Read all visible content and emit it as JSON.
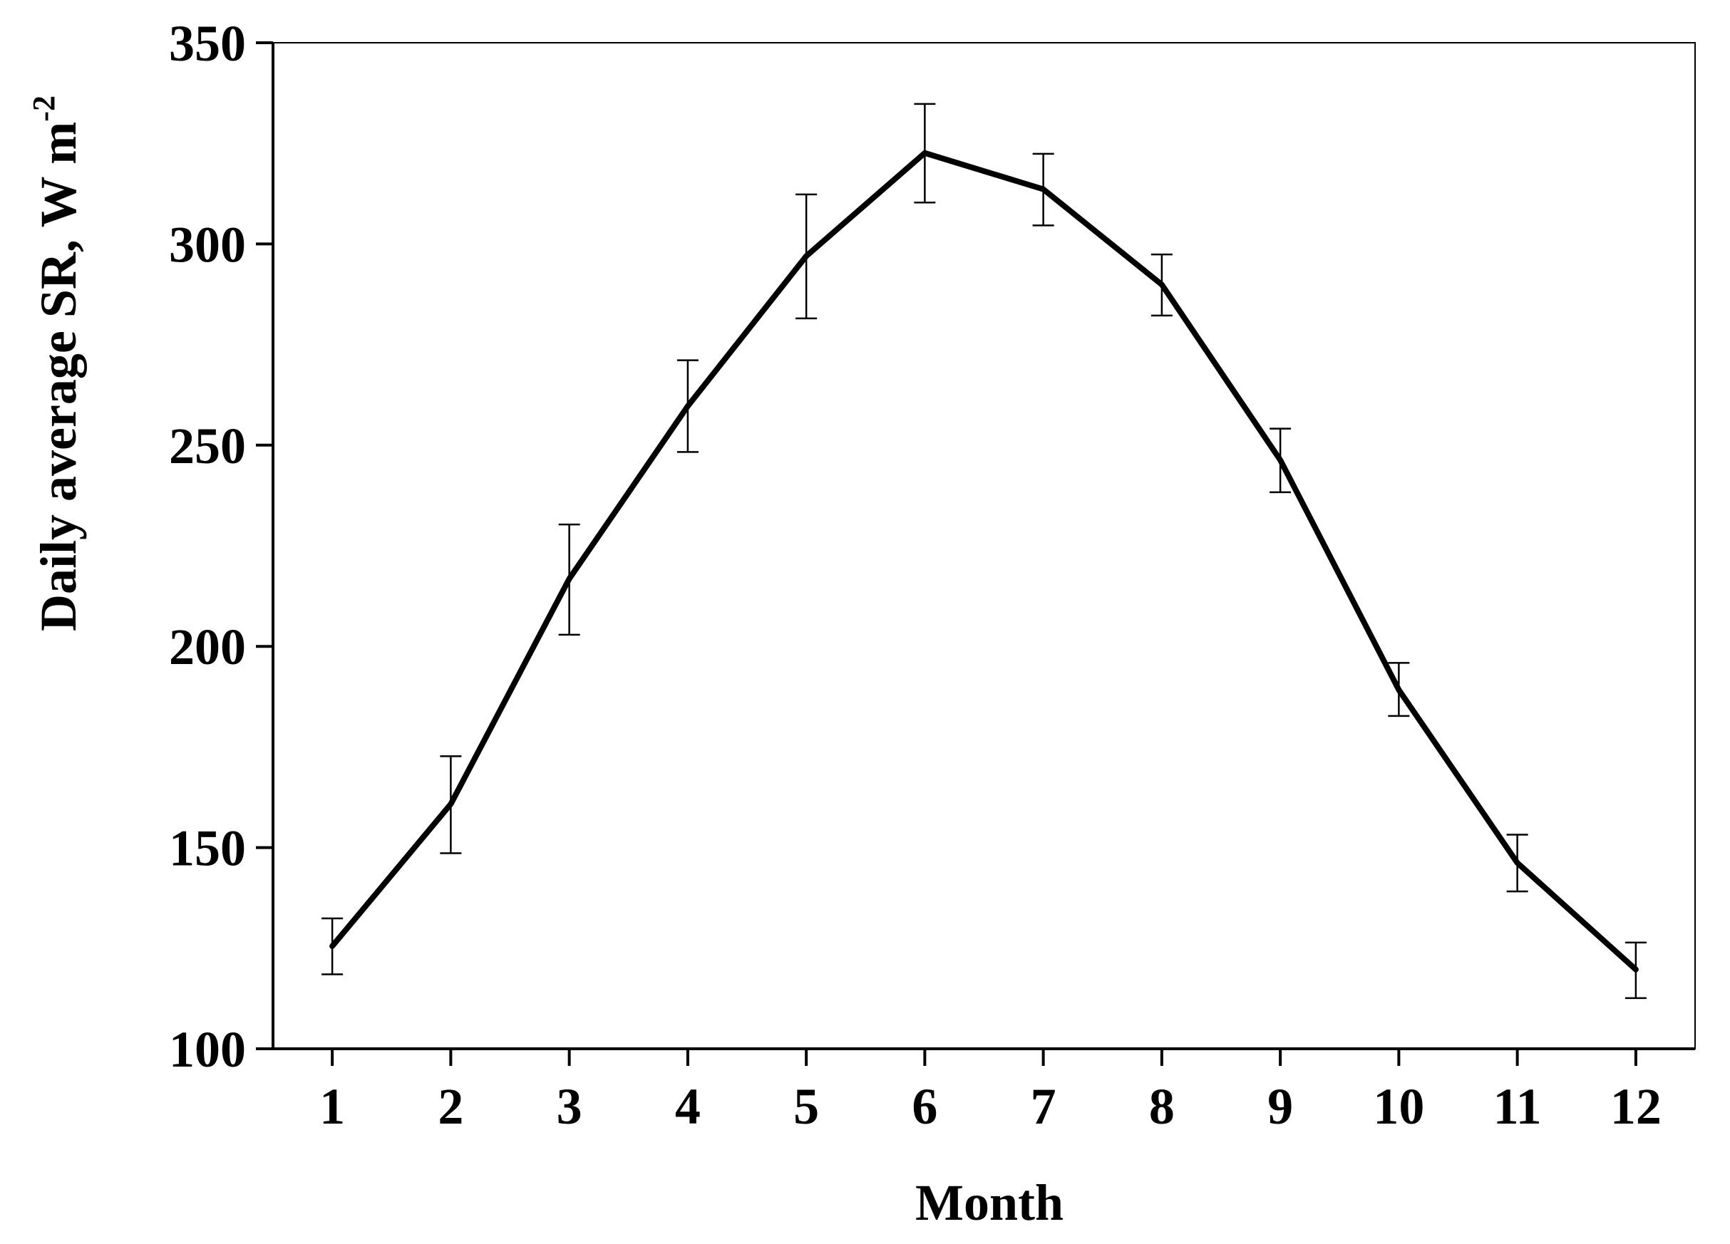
{
  "chart_data": {
    "type": "line",
    "xlabel": "Month",
    "ylabel": "Daily average SR,  W m",
    "ylabel_superscript": "-2",
    "categories": [
      "1",
      "2",
      "3",
      "4",
      "5",
      "6",
      "7",
      "8",
      "9",
      "10",
      "11",
      "12"
    ],
    "x": [
      1,
      2,
      3,
      4,
      5,
      6,
      7,
      8,
      9,
      10,
      11,
      12
    ],
    "series": [
      {
        "values": [
          125.5,
          160.8,
          216.8,
          259.7,
          297.0,
          322.6,
          313.6,
          289.9,
          246.3,
          189.2,
          146.2,
          119.7
        ],
        "error_upper": [
          132.4,
          172.7,
          230.3,
          271.1,
          312.3,
          334.8,
          322.4,
          297.4,
          254.1,
          195.9,
          153.2,
          126.4
        ],
        "error_lower": [
          118.5,
          148.6,
          202.9,
          248.3,
          281.5,
          310.3,
          304.6,
          282.2,
          238.3,
          182.7,
          139.1,
          112.6
        ]
      }
    ],
    "yticks": [
      100,
      150,
      200,
      250,
      300,
      350
    ],
    "xlim": [
      0.5,
      12.5
    ],
    "ylim": [
      100,
      350
    ],
    "grid": false,
    "legend": "none",
    "line_color": "#000000"
  }
}
